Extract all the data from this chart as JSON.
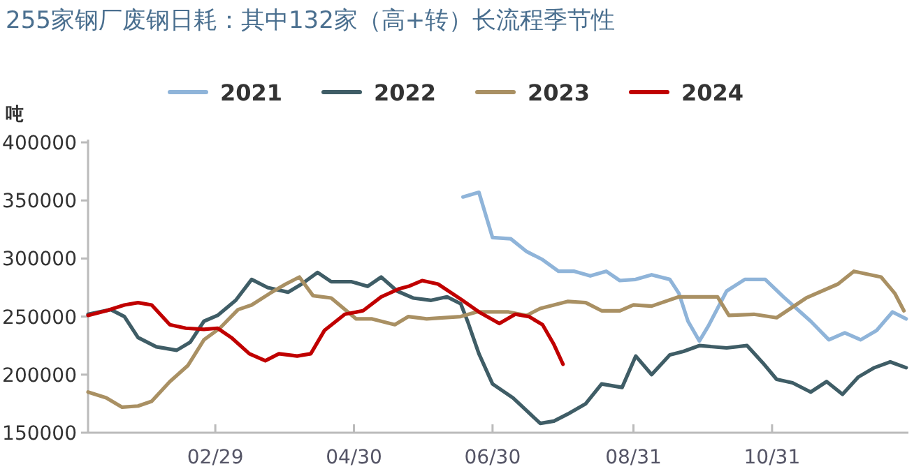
{
  "chart_data": {
    "type": "line",
    "title": "255家钢厂废钢日耗：其中132家（高+转）长流程季节性",
    "ylabel": "吨",
    "xlim": [
      "--01-04",
      "--12-30"
    ],
    "xticks": [
      {
        "value": "--02-29",
        "label": "02/29"
      },
      {
        "value": "--04-30",
        "label": "04/30"
      },
      {
        "value": "--06-30",
        "label": "06/30"
      },
      {
        "value": "--08-31",
        "label": "08/31"
      },
      {
        "value": "--10-31",
        "label": "10/31"
      }
    ],
    "ylim": [
      150000,
      400000
    ],
    "yticks": [
      150000,
      200000,
      250000,
      300000,
      350000,
      400000
    ],
    "legend": "top",
    "grid": false,
    "marker": "none",
    "line_style": "solid",
    "series": [
      {
        "name": "2021",
        "color": "#8fb4d9",
        "x": [
          "--06-17",
          "--06-24",
          "--06-30",
          "--07-08",
          "--07-15",
          "--07-22",
          "--07-29",
          "--08-05",
          "--08-12",
          "--08-19",
          "--08-25",
          "--09-01",
          "--09-08",
          "--09-16",
          "--09-20",
          "--09-24",
          "--09-29",
          "--10-03",
          "--10-11",
          "--10-19",
          "--10-28",
          "--11-05",
          "--11-17",
          "--11-25",
          "--12-02",
          "--12-09",
          "--12-16",
          "--12-23",
          "--12-29"
        ],
        "values": [
          353000,
          357000,
          318000,
          317000,
          306000,
          299000,
          289000,
          289000,
          285000,
          289000,
          281000,
          282000,
          286000,
          282000,
          270000,
          246000,
          229000,
          242000,
          272000,
          282000,
          282000,
          267000,
          246000,
          230000,
          236000,
          230000,
          238000,
          254000,
          248000
        ]
      },
      {
        "name": "2022",
        "color": "#3f5d66",
        "x": [
          "--01-04",
          "--01-14",
          "--01-20",
          "--01-26",
          "--02-03",
          "--02-12",
          "--02-18",
          "--02-24",
          "--03-01",
          "--03-09",
          "--03-16",
          "--03-23",
          "--04-01",
          "--04-07",
          "--04-14",
          "--04-20",
          "--04-29",
          "--05-06",
          "--05-12",
          "--05-19",
          "--05-26",
          "--06-03",
          "--06-10",
          "--06-16",
          "--06-19",
          "--06-24",
          "--06-30",
          "--07-09",
          "--07-15",
          "--07-21",
          "--07-27",
          "--08-02",
          "--08-10",
          "--08-17",
          "--08-26",
          "--09-01",
          "--09-08",
          "--09-16",
          "--09-22",
          "--09-29",
          "--10-11",
          "--10-20",
          "--10-27",
          "--11-02",
          "--11-09",
          "--11-17",
          "--11-24",
          "--12-01",
          "--12-08",
          "--12-15",
          "--12-22",
          "--12-29"
        ],
        "values": [
          252000,
          256000,
          250000,
          232000,
          224000,
          221000,
          228000,
          246000,
          251000,
          264000,
          282000,
          275000,
          271000,
          278000,
          288000,
          280000,
          280000,
          276000,
          284000,
          272000,
          266000,
          264000,
          267000,
          261000,
          246000,
          218000,
          192000,
          180000,
          169000,
          158000,
          160000,
          166000,
          175000,
          192000,
          189000,
          216000,
          200000,
          217000,
          220000,
          225000,
          223000,
          225000,
          210000,
          196000,
          193000,
          185000,
          194000,
          183000,
          198000,
          206000,
          211000,
          206000
        ]
      },
      {
        "name": "2023",
        "color": "#a99063",
        "x": [
          "--01-04",
          "--01-12",
          "--01-19",
          "--01-26",
          "--02-01",
          "--02-09",
          "--02-17",
          "--02-24",
          "--03-02",
          "--03-10",
          "--03-16",
          "--03-24",
          "--03-31",
          "--04-06",
          "--04-12",
          "--04-20",
          "--05-01",
          "--05-08",
          "--05-18",
          "--05-24",
          "--06-01",
          "--06-16",
          "--06-23",
          "--07-07",
          "--07-15",
          "--07-21",
          "--08-02",
          "--08-10",
          "--08-17",
          "--08-25",
          "--08-31",
          "--09-08",
          "--09-20",
          "--09-28",
          "--10-07",
          "--10-12",
          "--10-23",
          "--11-02",
          "--11-15",
          "--11-29",
          "--12-06",
          "--12-18",
          "--12-24",
          "--12-28"
        ],
        "values": [
          185000,
          180000,
          172000,
          173000,
          177000,
          194000,
          208000,
          230000,
          240000,
          256000,
          260000,
          270000,
          278000,
          284000,
          268000,
          266000,
          248000,
          248000,
          243000,
          250000,
          248000,
          250000,
          254000,
          254000,
          251000,
          257000,
          263000,
          262000,
          255000,
          255000,
          260000,
          259000,
          267000,
          267000,
          267000,
          251000,
          252000,
          249000,
          266000,
          278000,
          289000,
          284000,
          270000,
          255000
        ]
      },
      {
        "name": "2024",
        "color": "#c00000",
        "x": [
          "--01-04",
          "--01-12",
          "--01-20",
          "--01-26",
          "--02-01",
          "--02-09",
          "--02-16",
          "--02-24",
          "--03-01",
          "--03-07",
          "--03-15",
          "--03-22",
          "--03-28",
          "--04-05",
          "--04-11",
          "--04-17",
          "--04-26",
          "--05-04",
          "--05-12",
          "--05-20",
          "--05-24",
          "--05-30",
          "--06-06",
          "--06-16",
          "--06-24",
          "--07-03",
          "--07-10",
          "--07-16",
          "--07-22",
          "--07-27",
          "--07-31"
        ],
        "values": [
          251000,
          255000,
          260000,
          262000,
          260000,
          243000,
          240000,
          239000,
          240000,
          232000,
          218000,
          212000,
          218000,
          216000,
          218000,
          238000,
          252000,
          255000,
          267000,
          274000,
          276000,
          281000,
          278000,
          265000,
          254000,
          244000,
          252000,
          250000,
          243000,
          226000,
          209000
        ]
      }
    ]
  }
}
